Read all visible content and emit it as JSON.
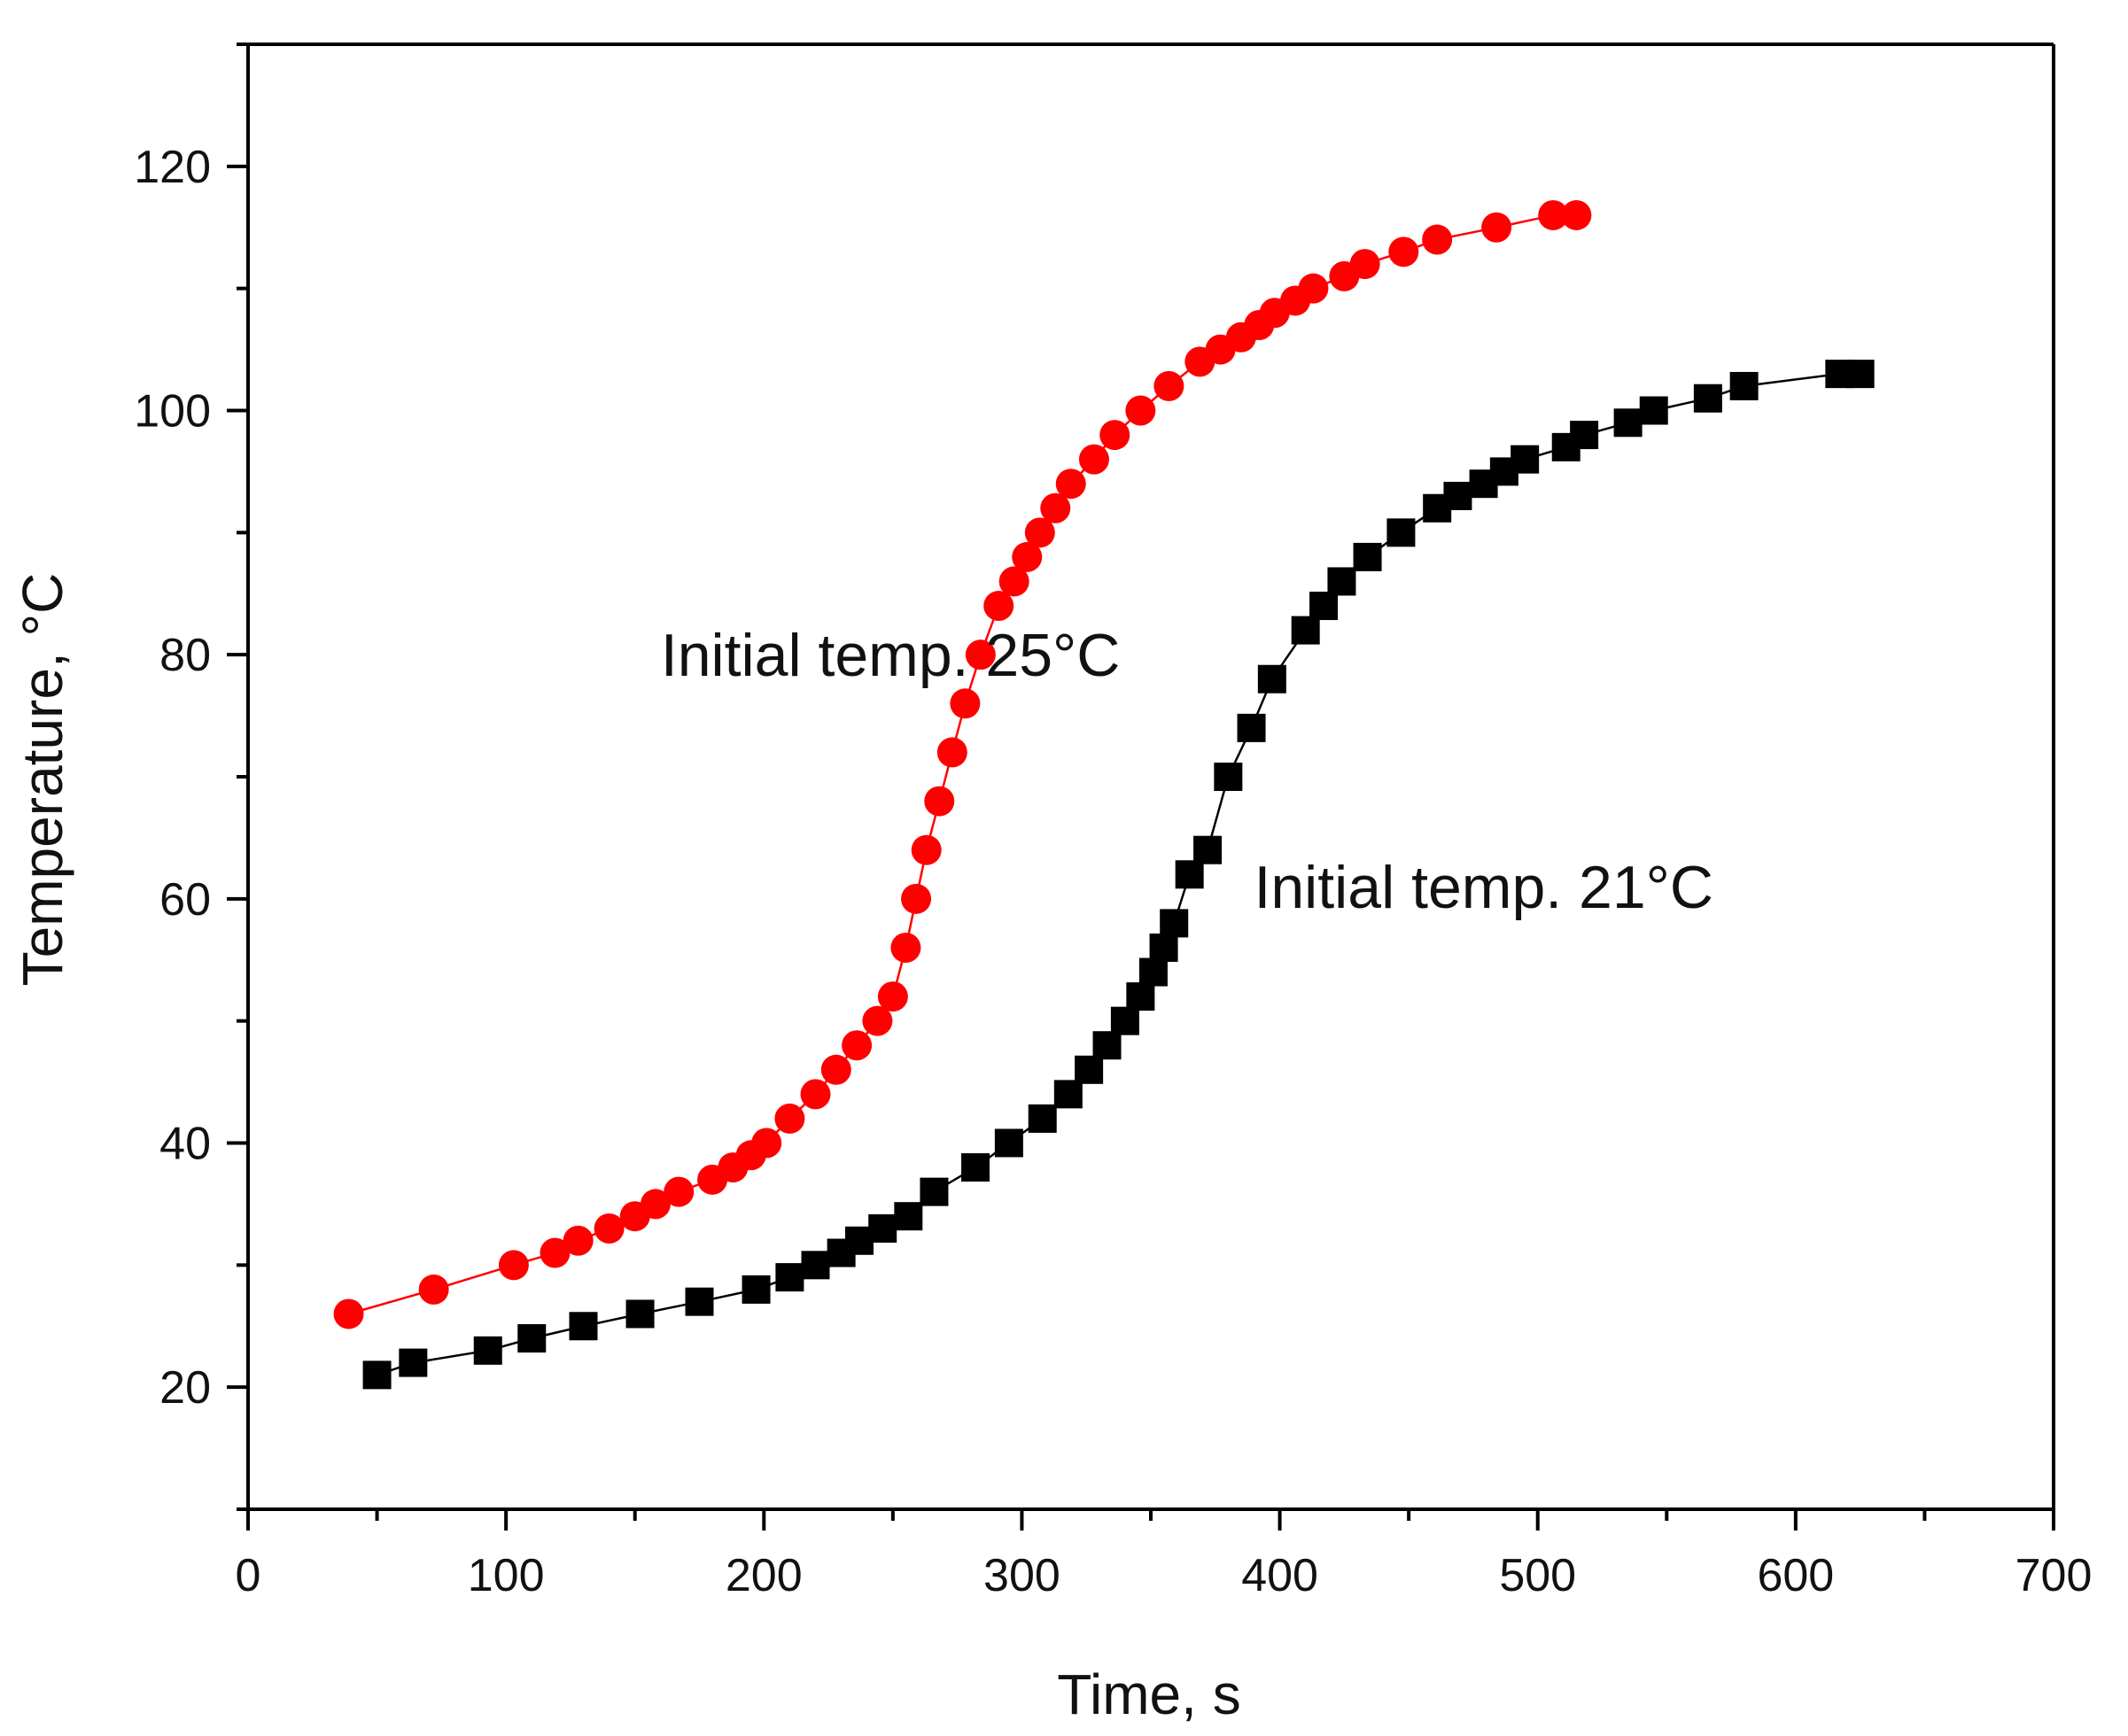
{
  "chart_data": {
    "type": "scatter",
    "title": "",
    "xlabel": "Time, s",
    "ylabel": "Temperature, °C",
    "xlim": [
      0,
      700
    ],
    "ylim": [
      10,
      130
    ],
    "xticks": [
      0,
      100,
      200,
      300,
      400,
      500,
      600,
      700
    ],
    "yticks": [
      20,
      40,
      60,
      80,
      100,
      120
    ],
    "grid": false,
    "legend": "none",
    "series": [
      {
        "name": "Initial temp. 25°C",
        "marker": "circle",
        "color": "#ff0000",
        "line": true,
        "points": [
          [
            39,
            26
          ],
          [
            72,
            28
          ],
          [
            103,
            30
          ],
          [
            119,
            31
          ],
          [
            128,
            32
          ],
          [
            140,
            33
          ],
          [
            150,
            34
          ],
          [
            158,
            35
          ],
          [
            167,
            36
          ],
          [
            180,
            37
          ],
          [
            188,
            38
          ],
          [
            195,
            39
          ],
          [
            201,
            40
          ],
          [
            210,
            42
          ],
          [
            220,
            44
          ],
          [
            228,
            46
          ],
          [
            236,
            48
          ],
          [
            244,
            50
          ],
          [
            250,
            52
          ],
          [
            255,
            56
          ],
          [
            259,
            60
          ],
          [
            263,
            64
          ],
          [
            268,
            68
          ],
          [
            273,
            72
          ],
          [
            278,
            76
          ],
          [
            284,
            80
          ],
          [
            291,
            84
          ],
          [
            297,
            86
          ],
          [
            302,
            88
          ],
          [
            307,
            90
          ],
          [
            313,
            92
          ],
          [
            319,
            94
          ],
          [
            328,
            96
          ],
          [
            336,
            98
          ],
          [
            346,
            100
          ],
          [
            357,
            102
          ],
          [
            369,
            104
          ],
          [
            377,
            105
          ],
          [
            385,
            106
          ],
          [
            392,
            107
          ],
          [
            398,
            108
          ],
          [
            406,
            109
          ],
          [
            413,
            110
          ],
          [
            425,
            111
          ],
          [
            433,
            112
          ],
          [
            448,
            113
          ],
          [
            461,
            114
          ],
          [
            484,
            115
          ],
          [
            506,
            116
          ],
          [
            515,
            116
          ]
        ]
      },
      {
        "name": "Initial temp. 21°C",
        "marker": "square",
        "color": "#000000",
        "line": true,
        "points": [
          [
            50,
            21
          ],
          [
            64,
            22
          ],
          [
            93,
            23
          ],
          [
            110,
            24
          ],
          [
            130,
            25
          ],
          [
            152,
            26
          ],
          [
            175,
            27
          ],
          [
            197,
            28
          ],
          [
            210,
            29
          ],
          [
            220,
            30
          ],
          [
            230,
            31
          ],
          [
            237,
            32
          ],
          [
            246,
            33
          ],
          [
            256,
            34
          ],
          [
            266,
            36
          ],
          [
            282,
            38
          ],
          [
            295,
            40
          ],
          [
            308,
            42
          ],
          [
            318,
            44
          ],
          [
            326,
            46
          ],
          [
            333,
            48
          ],
          [
            340,
            50
          ],
          [
            346,
            52
          ],
          [
            351,
            54
          ],
          [
            355,
            56
          ],
          [
            359,
            58
          ],
          [
            365,
            62
          ],
          [
            372,
            64
          ],
          [
            380,
            70
          ],
          [
            389,
            74
          ],
          [
            397,
            78
          ],
          [
            410,
            82
          ],
          [
            417,
            84
          ],
          [
            424,
            86
          ],
          [
            434,
            88
          ],
          [
            447,
            90
          ],
          [
            461,
            92
          ],
          [
            469,
            93
          ],
          [
            479,
            94
          ],
          [
            487,
            95
          ],
          [
            495,
            96
          ],
          [
            511,
            97
          ],
          [
            518,
            98
          ],
          [
            535,
            99
          ],
          [
            545,
            100
          ],
          [
            566,
            101
          ],
          [
            580,
            102
          ],
          [
            617,
            103
          ],
          [
            625,
            103
          ]
        ]
      }
    ],
    "annotations": [
      {
        "text": "Initial temp. 25°C",
        "x": 160,
        "y": 80,
        "anchor": "start"
      },
      {
        "text": "Initial temp. 21°C",
        "x": 390,
        "y": 61,
        "anchor": "start"
      }
    ]
  }
}
